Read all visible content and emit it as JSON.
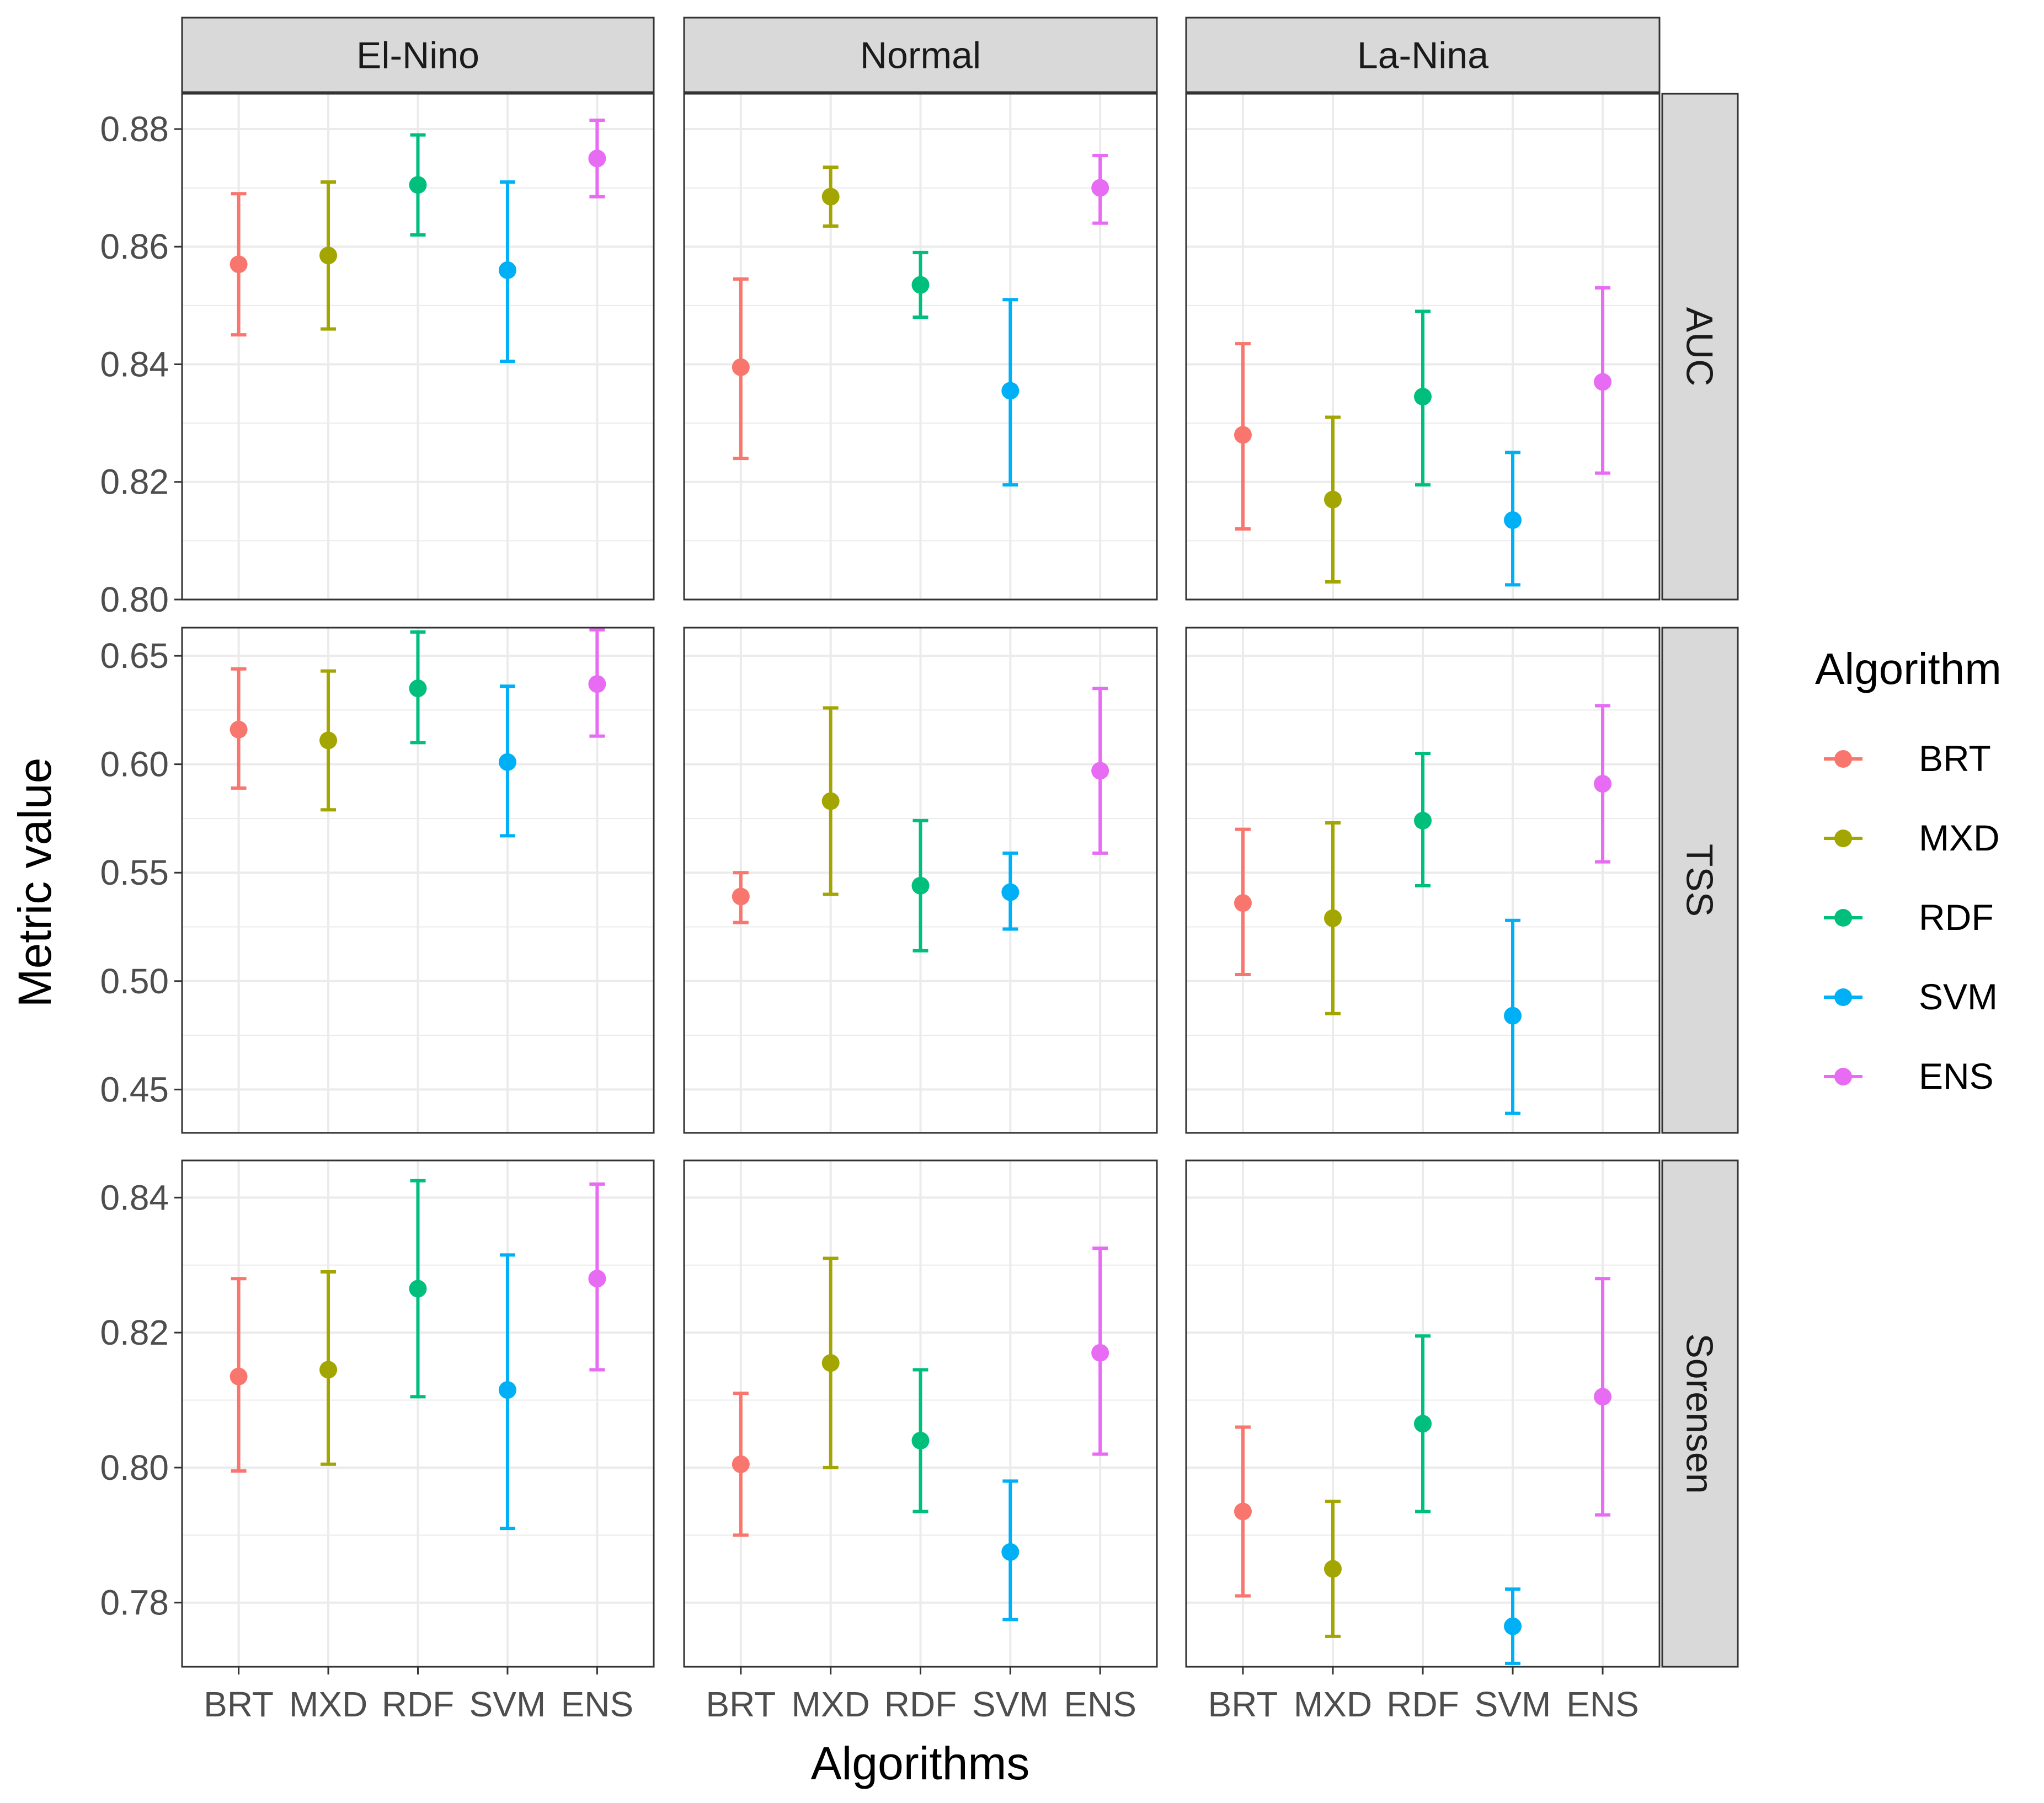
{
  "chart_data": {
    "type": "errorbar",
    "ylabel": "Metric value",
    "xlabel": "Algorithms",
    "legend": {
      "title": "Algorithm",
      "position": "right"
    },
    "columns": [
      "El-Nino",
      "Normal",
      "La-Nina"
    ],
    "categories": [
      "BRT",
      "MXD",
      "RDF",
      "SVM",
      "ENS"
    ],
    "colors": {
      "BRT": "#F8766D",
      "MXD": "#A3A500",
      "RDF": "#00BF7D",
      "SVM": "#00B0F6",
      "ENS": "#E76BF3"
    },
    "rows": [
      {
        "name": "AUC",
        "ylim": [
          0.8,
          0.886
        ],
        "yticks": [
          0.8,
          0.82,
          0.84,
          0.86,
          0.88
        ],
        "ytick_labels": [
          "0.80",
          "0.82",
          "0.84",
          "0.86",
          "0.88"
        ],
        "panels": {
          "El-Nino": [
            {
              "algo": "BRT",
              "mean": 0.857,
              "lo": 0.845,
              "hi": 0.869
            },
            {
              "algo": "MXD",
              "mean": 0.8585,
              "lo": 0.846,
              "hi": 0.871
            },
            {
              "algo": "RDF",
              "mean": 0.8705,
              "lo": 0.862,
              "hi": 0.879
            },
            {
              "algo": "SVM",
              "mean": 0.856,
              "lo": 0.8405,
              "hi": 0.871
            },
            {
              "algo": "ENS",
              "mean": 0.875,
              "lo": 0.8685,
              "hi": 0.8815
            }
          ],
          "Normal": [
            {
              "algo": "BRT",
              "mean": 0.8395,
              "lo": 0.824,
              "hi": 0.8545
            },
            {
              "algo": "MXD",
              "mean": 0.8685,
              "lo": 0.8635,
              "hi": 0.8735
            },
            {
              "algo": "RDF",
              "mean": 0.8535,
              "lo": 0.848,
              "hi": 0.859
            },
            {
              "algo": "SVM",
              "mean": 0.8355,
              "lo": 0.8195,
              "hi": 0.851
            },
            {
              "algo": "ENS",
              "mean": 0.87,
              "lo": 0.864,
              "hi": 0.8755
            }
          ],
          "La-Nina": [
            {
              "algo": "BRT",
              "mean": 0.828,
              "lo": 0.812,
              "hi": 0.8435
            },
            {
              "algo": "MXD",
              "mean": 0.817,
              "lo": 0.803,
              "hi": 0.831
            },
            {
              "algo": "RDF",
              "mean": 0.8345,
              "lo": 0.8195,
              "hi": 0.849
            },
            {
              "algo": "SVM",
              "mean": 0.8135,
              "lo": 0.8025,
              "hi": 0.825
            },
            {
              "algo": "ENS",
              "mean": 0.837,
              "lo": 0.8215,
              "hi": 0.853
            }
          ]
        }
      },
      {
        "name": "TSS",
        "ylim": [
          0.43,
          0.663
        ],
        "yticks": [
          0.45,
          0.5,
          0.55,
          0.6,
          0.65
        ],
        "ytick_labels": [
          "0.45",
          "0.50",
          "0.55",
          "0.60",
          "0.65"
        ],
        "panels": {
          "El-Nino": [
            {
              "algo": "BRT",
              "mean": 0.616,
              "lo": 0.589,
              "hi": 0.644
            },
            {
              "algo": "MXD",
              "mean": 0.611,
              "lo": 0.579,
              "hi": 0.643
            },
            {
              "algo": "RDF",
              "mean": 0.635,
              "lo": 0.61,
              "hi": 0.661
            },
            {
              "algo": "SVM",
              "mean": 0.601,
              "lo": 0.567,
              "hi": 0.636
            },
            {
              "algo": "ENS",
              "mean": 0.637,
              "lo": 0.613,
              "hi": 0.662
            }
          ],
          "Normal": [
            {
              "algo": "BRT",
              "mean": 0.539,
              "lo": 0.527,
              "hi": 0.55
            },
            {
              "algo": "MXD",
              "mean": 0.583,
              "lo": 0.54,
              "hi": 0.626
            },
            {
              "algo": "RDF",
              "mean": 0.544,
              "lo": 0.514,
              "hi": 0.574
            },
            {
              "algo": "SVM",
              "mean": 0.541,
              "lo": 0.524,
              "hi": 0.559
            },
            {
              "algo": "ENS",
              "mean": 0.597,
              "lo": 0.559,
              "hi": 0.635
            }
          ],
          "La-Nina": [
            {
              "algo": "BRT",
              "mean": 0.536,
              "lo": 0.503,
              "hi": 0.57
            },
            {
              "algo": "MXD",
              "mean": 0.529,
              "lo": 0.485,
              "hi": 0.573
            },
            {
              "algo": "RDF",
              "mean": 0.574,
              "lo": 0.544,
              "hi": 0.605
            },
            {
              "algo": "SVM",
              "mean": 0.484,
              "lo": 0.439,
              "hi": 0.528
            },
            {
              "algo": "ENS",
              "mean": 0.591,
              "lo": 0.555,
              "hi": 0.627
            }
          ]
        }
      },
      {
        "name": "Sorensen",
        "ylim": [
          0.7705,
          0.8455
        ],
        "yticks": [
          0.78,
          0.8,
          0.82,
          0.84
        ],
        "ytick_labels": [
          "0.78",
          "0.80",
          "0.82",
          "0.84"
        ],
        "panels": {
          "El-Nino": [
            {
              "algo": "BRT",
              "mean": 0.8135,
              "lo": 0.7995,
              "hi": 0.828
            },
            {
              "algo": "MXD",
              "mean": 0.8145,
              "lo": 0.8005,
              "hi": 0.829
            },
            {
              "algo": "RDF",
              "mean": 0.8265,
              "lo": 0.8105,
              "hi": 0.8425
            },
            {
              "algo": "SVM",
              "mean": 0.8115,
              "lo": 0.791,
              "hi": 0.8315
            },
            {
              "algo": "ENS",
              "mean": 0.828,
              "lo": 0.8145,
              "hi": 0.842
            }
          ],
          "Normal": [
            {
              "algo": "BRT",
              "mean": 0.8005,
              "lo": 0.79,
              "hi": 0.811
            },
            {
              "algo": "MXD",
              "mean": 0.8155,
              "lo": 0.8,
              "hi": 0.831
            },
            {
              "algo": "RDF",
              "mean": 0.804,
              "lo": 0.7935,
              "hi": 0.8145
            },
            {
              "algo": "SVM",
              "mean": 0.7875,
              "lo": 0.7775,
              "hi": 0.798
            },
            {
              "algo": "ENS",
              "mean": 0.817,
              "lo": 0.802,
              "hi": 0.8325
            }
          ],
          "La-Nina": [
            {
              "algo": "BRT",
              "mean": 0.7935,
              "lo": 0.781,
              "hi": 0.806
            },
            {
              "algo": "MXD",
              "mean": 0.785,
              "lo": 0.775,
              "hi": 0.795
            },
            {
              "algo": "RDF",
              "mean": 0.8065,
              "lo": 0.7935,
              "hi": 0.8195
            },
            {
              "algo": "SVM",
              "mean": 0.7765,
              "lo": 0.771,
              "hi": 0.782
            },
            {
              "algo": "ENS",
              "mean": 0.8105,
              "lo": 0.793,
              "hi": 0.828
            }
          ]
        }
      }
    ]
  }
}
